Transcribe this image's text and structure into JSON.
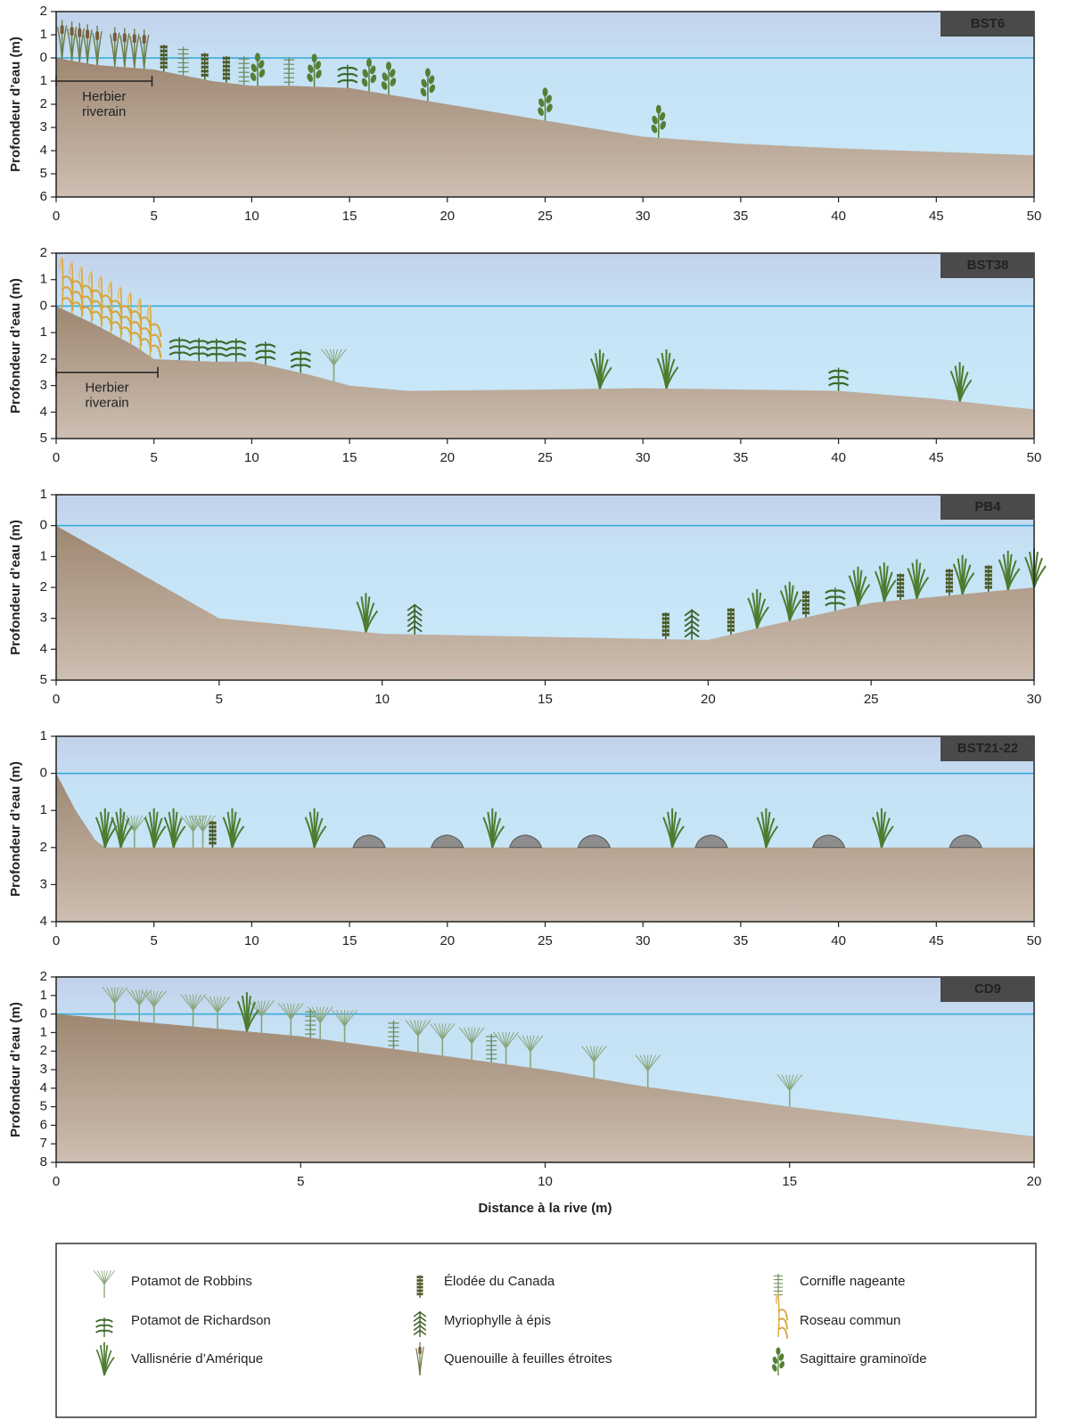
{
  "chart_data": [
    {
      "type": "area",
      "title": "BST6",
      "ylabel": "Profondeur d’eau (m)",
      "x": [
        0,
        2,
        5,
        8,
        10,
        12,
        15,
        20,
        25,
        30,
        35,
        40,
        45,
        50
      ],
      "values": [
        0,
        0.3,
        0.5,
        1,
        1.2,
        1.2,
        1.3,
        2,
        2.7,
        3.4,
        3.7,
        3.9,
        4.05,
        4.2
      ],
      "xlim": [
        0,
        50
      ],
      "ylim": [
        -2,
        6
      ],
      "xticks": [
        0,
        5,
        10,
        15,
        20,
        25,
        30,
        35,
        40,
        45,
        50
      ],
      "yticks": [
        {
          "value": -2,
          "label": "2"
        },
        {
          "value": -1,
          "label": "1"
        },
        0,
        1,
        2,
        3,
        4,
        5,
        6
      ],
      "annotation": {
        "lines": [
          "Herbier",
          "riverain"
        ],
        "x": [
          0,
          4.9
        ],
        "y": 1
      },
      "plants": [
        [],
        [
          14.9
        ],
        [],
        [
          5.5,
          7.6,
          8.7
        ],
        [],
        [
          0.3,
          0.8,
          1.2,
          1.6,
          2.1,
          3,
          3.5,
          4,
          4.5
        ],
        [
          6.5,
          9.6,
          11.9
        ],
        [],
        [
          10.3,
          13.2,
          16,
          17,
          19,
          25,
          30.8
        ]
      ]
    },
    {
      "type": "area",
      "title": "BST38",
      "ylabel": "Profondeur d’eau (m)",
      "x": [
        0,
        2,
        4,
        5,
        8,
        10,
        13,
        15,
        18,
        25,
        30,
        35,
        40,
        45,
        50
      ],
      "values": [
        0,
        0.7,
        1.5,
        2,
        2.1,
        2.1,
        2.6,
        3,
        3.2,
        3.15,
        3.1,
        3.15,
        3.2,
        3.5,
        3.9
      ],
      "xlim": [
        0,
        50
      ],
      "ylim": [
        -2,
        5
      ],
      "xticks": [
        0,
        5,
        10,
        15,
        20,
        25,
        30,
        35,
        40,
        45,
        50
      ],
      "yticks": [
        {
          "value": -2,
          "label": "2"
        },
        {
          "value": -1,
          "label": "1"
        },
        0,
        1,
        2,
        3,
        4,
        5
      ],
      "annotation": {
        "lines": [
          "Herbier",
          "riverain"
        ],
        "x": [
          0,
          5.2
        ],
        "y": 2.5
      },
      "plants": [
        [
          14.2
        ],
        [
          6.3,
          7.3,
          8.2,
          9.2,
          10.7,
          12.5,
          40
        ],
        [
          27.8,
          31.2,
          46.2
        ],
        [],
        [],
        [],
        [],
        [
          0.3,
          0.8,
          1.3,
          1.8,
          2.3,
          2.8,
          3.3,
          3.8,
          4.3,
          4.8
        ],
        []
      ]
    },
    {
      "type": "area",
      "title": "PB4",
      "ylabel": "Profondeur d’eau (m)",
      "x": [
        0,
        5,
        10,
        15,
        20,
        22,
        25,
        30
      ],
      "values": [
        0,
        3,
        3.5,
        3.6,
        3.7,
        3.2,
        2.5,
        2
      ],
      "xlim": [
        0,
        30
      ],
      "ylim": [
        -1,
        5
      ],
      "xticks": [
        0,
        5,
        10,
        15,
        20,
        25,
        30
      ],
      "yticks": [
        {
          "value": -1,
          "label": "1"
        },
        0,
        1,
        2,
        3,
        4,
        5
      ],
      "plants": [
        [],
        [
          23.9
        ],
        [
          9.5,
          21.5,
          22.5,
          24.6,
          25.4,
          26.4,
          27.8,
          29.2,
          30
        ],
        [
          18.7,
          20.7,
          23,
          25.9,
          27.4,
          28.6
        ],
        [
          11,
          19.5
        ],
        [],
        [],
        [],
        []
      ]
    },
    {
      "type": "area",
      "title": "BST21-22",
      "ylabel": "Profondeur d’eau (m)",
      "x": [
        0,
        1,
        2,
        2.5,
        50
      ],
      "values": [
        0,
        1,
        1.8,
        2,
        2
      ],
      "xlim": [
        0,
        50
      ],
      "ylim": [
        -1,
        4
      ],
      "xticks": [
        0,
        5,
        10,
        15,
        20,
        25,
        30,
        35,
        40,
        45,
        50
      ],
      "yticks": [
        {
          "value": -1,
          "label": "1"
        },
        0,
        1,
        2,
        3,
        4
      ],
      "rocks": [
        16,
        20,
        24,
        27.5,
        33.5,
        39.5,
        46.5
      ],
      "plants": [
        [
          4,
          7,
          7.5
        ],
        [],
        [
          2.5,
          3.3,
          5,
          6,
          9,
          13.2,
          22.3,
          31.5,
          36.3,
          42.2
        ],
        [
          8
        ],
        [],
        [],
        [],
        [],
        []
      ]
    },
    {
      "type": "area",
      "title": "CD9",
      "ylabel": "Profondeur d’eau (m)",
      "xlabel": "Distance à la rive (m)",
      "x": [
        0,
        5,
        10,
        12,
        15,
        20
      ],
      "values": [
        0,
        1.2,
        3,
        3.9,
        5,
        6.6
      ],
      "xlim": [
        0,
        20
      ],
      "ylim": [
        -2,
        8
      ],
      "xticks": [
        0,
        5,
        10,
        15,
        20
      ],
      "yticks": [
        {
          "value": -2,
          "label": "2"
        },
        {
          "value": -1,
          "label": "1"
        },
        0,
        1,
        2,
        3,
        4,
        5,
        6,
        7,
        8
      ],
      "plants": [
        [
          1.2,
          1.7,
          2,
          2.8,
          3.3,
          4.2,
          4.8,
          5.4,
          5.9,
          7.4,
          7.9,
          8.5,
          9.2,
          9.7,
          11,
          12.1,
          15
        ],
        [],
        [
          3.9
        ],
        [],
        [],
        [],
        [
          5.2,
          6.9,
          8.9
        ],
        [],
        []
      ]
    }
  ],
  "legend": {
    "items": [
      "Potamot de Robbins",
      "Potamot de Richardson",
      "Vallisnérie d’Amérique",
      "Élodée du Canada",
      "Myriophylle à épis",
      "Quenouille à feuilles étroites",
      "Cornifle nageante",
      "Roseau commun",
      "Sagittaire graminoïde"
    ]
  }
}
